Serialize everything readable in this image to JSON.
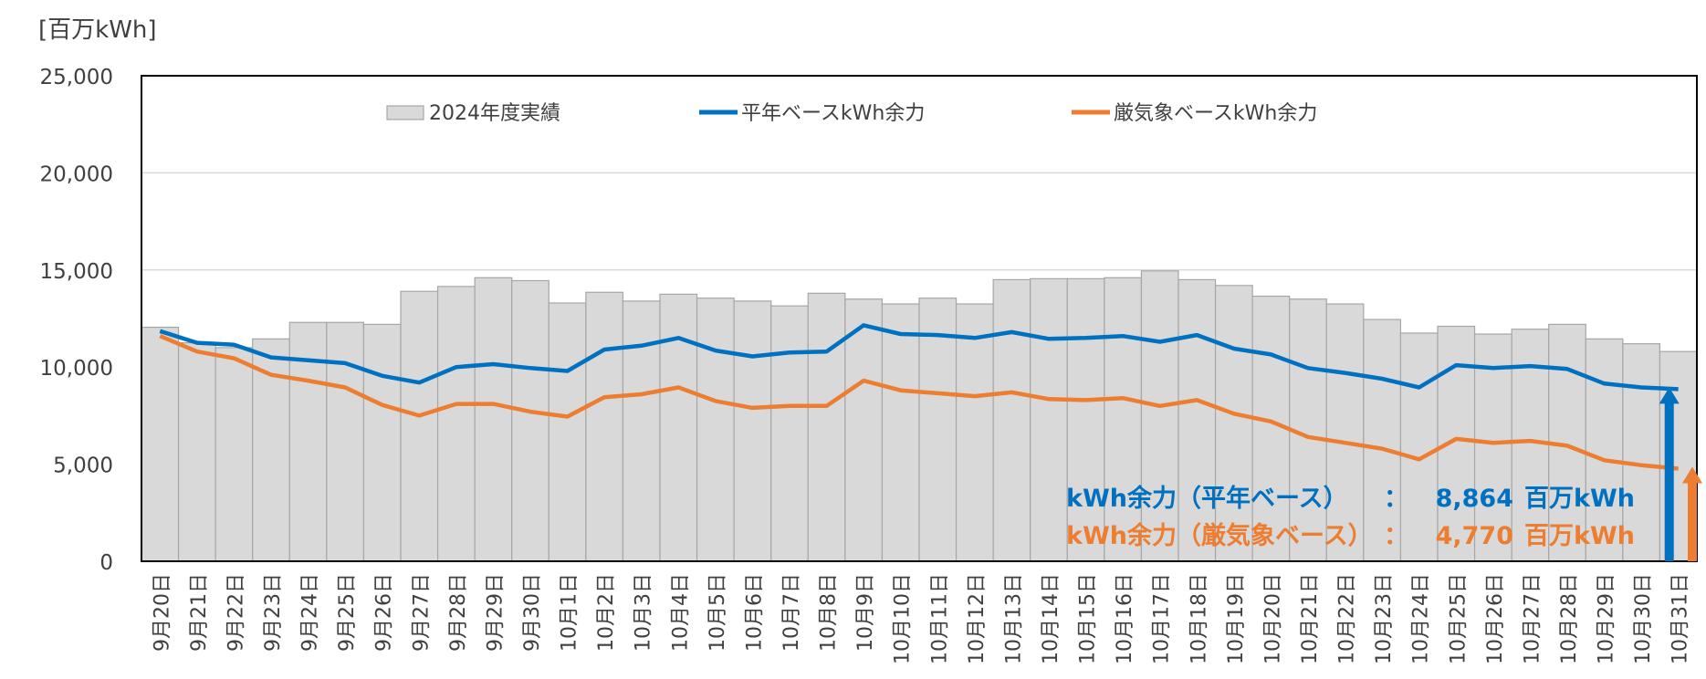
{
  "unit_label": "[百万kWh]",
  "chart_data": {
    "type": "bar",
    "ylim": [
      0,
      25000
    ],
    "yticks": [
      "0",
      "5,000",
      "10,000",
      "15,000",
      "20,000",
      "25,000"
    ],
    "grid": true,
    "legend_position": "top",
    "categories": [
      "9月20日",
      "9月21日",
      "9月22日",
      "9月23日",
      "9月24日",
      "9月25日",
      "9月26日",
      "9月27日",
      "9月28日",
      "9月29日",
      "9月30日",
      "10月1日",
      "10月2日",
      "10月3日",
      "10月4日",
      "10月5日",
      "10月6日",
      "10月7日",
      "10月8日",
      "10月9日",
      "10月10日",
      "10月11日",
      "10月12日",
      "10月13日",
      "10月14日",
      "10月15日",
      "10月16日",
      "10月17日",
      "10月18日",
      "10月19日",
      "10月20日",
      "10月21日",
      "10月22日",
      "10月23日",
      "10月24日",
      "10月25日",
      "10月26日",
      "10月27日",
      "10月28日",
      "10月29日",
      "10月30日",
      "10月31日"
    ],
    "series": [
      {
        "name": "2024年度実績",
        "kind": "bar",
        "color": "#d9d9d9",
        "values": [
          12050,
          11250,
          11000,
          11450,
          12300,
          12300,
          12200,
          13900,
          14150,
          14600,
          14450,
          13300,
          13850,
          13400,
          13750,
          13550,
          13400,
          13150,
          13800,
          13500,
          13250,
          13550,
          13250,
          14500,
          14550,
          14550,
          14600,
          14950,
          14500,
          14200,
          13650,
          13500,
          13250,
          12450,
          11750,
          12100,
          11700,
          11950,
          12200,
          11450,
          11200,
          10800
        ]
      },
      {
        "name": "平年ベースkWh余力",
        "kind": "line",
        "color": "#0070c0",
        "values": [
          11850,
          11250,
          11150,
          10500,
          10350,
          10200,
          9550,
          9200,
          10000,
          10150,
          9950,
          9800,
          10900,
          11100,
          11500,
          10850,
          10550,
          10750,
          10800,
          12150,
          11700,
          11650,
          11500,
          11800,
          11450,
          11500,
          11600,
          11300,
          11650,
          10950,
          10650,
          9950,
          9700,
          9400,
          8950,
          10100,
          9950,
          10050,
          9900,
          9150,
          8950,
          8864
        ]
      },
      {
        "name": "厳気象ベースkWh余力",
        "kind": "line",
        "color": "#ed7d31",
        "values": [
          11600,
          10800,
          10450,
          9600,
          9300,
          8950,
          8050,
          7500,
          8100,
          8100,
          7700,
          7450,
          8450,
          8600,
          8950,
          8250,
          7900,
          8000,
          8000,
          9300,
          8800,
          8650,
          8500,
          8700,
          8350,
          8300,
          8400,
          8000,
          8300,
          7600,
          7200,
          6400,
          6100,
          5800,
          5250,
          6300,
          6100,
          6200,
          5950,
          5200,
          4950,
          4770
        ]
      }
    ],
    "annotations": [
      {
        "label": "kWh余力（平年ベース）",
        "colon": "：",
        "value": "8,864",
        "unit": "百万kWh",
        "color": "#0070c0"
      },
      {
        "label": "kWh余力（厳気象ベース）",
        "colon": "：",
        "value": "4,770",
        "unit": "百万kWh",
        "color": "#ed7d31"
      }
    ]
  }
}
